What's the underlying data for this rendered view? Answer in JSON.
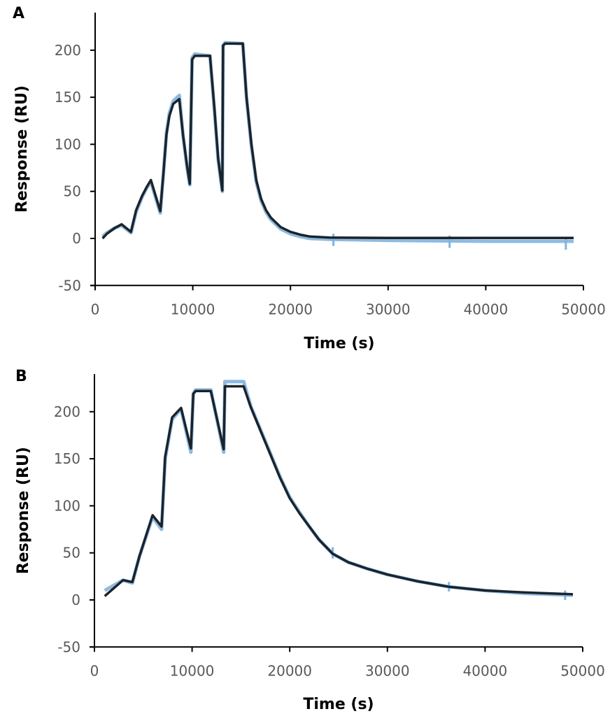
{
  "chart_data": [
    {
      "panel_label": "A",
      "type": "line",
      "xlabel": "Time (s)",
      "ylabel": "Response (RU)",
      "xlim": [
        0,
        50000
      ],
      "ylim": [
        -50,
        240
      ],
      "xticks": [
        0,
        10000,
        20000,
        30000,
        40000,
        50000
      ],
      "yticks": [
        -50,
        0,
        50,
        100,
        150,
        200
      ],
      "grid": false,
      "legend": "none",
      "colors": {
        "measured": "#7fb3de",
        "fit": "#1b232a"
      },
      "measured": {
        "points": [
          [
            760,
            2
          ],
          [
            1200,
            6
          ],
          [
            2000,
            11
          ],
          [
            2710,
            14
          ],
          [
            3670,
            6
          ],
          [
            4200,
            28
          ],
          [
            4800,
            44
          ],
          [
            5300,
            54
          ],
          [
            5710,
            60
          ],
          [
            6670,
            27
          ],
          [
            7000,
            70
          ],
          [
            7300,
            112
          ],
          [
            7600,
            133
          ],
          [
            8000,
            146
          ],
          [
            8620,
            152
          ],
          [
            9000,
            110
          ],
          [
            9400,
            76
          ],
          [
            9690,
            57
          ],
          [
            9930,
            192
          ],
          [
            10200,
            196
          ],
          [
            11760,
            194
          ],
          [
            12200,
            138
          ],
          [
            12600,
            83
          ],
          [
            13020,
            50
          ],
          [
            13100,
            205
          ],
          [
            13300,
            208
          ],
          [
            15120,
            207
          ],
          [
            15500,
            149
          ],
          [
            16000,
            98
          ],
          [
            16500,
            60
          ],
          [
            17000,
            40
          ],
          [
            17500,
            28
          ],
          [
            18000,
            20
          ],
          [
            19000,
            10
          ],
          [
            20000,
            5
          ],
          [
            21000,
            2
          ],
          [
            22000,
            0
          ],
          [
            24000,
            -1
          ],
          [
            30000,
            -2
          ],
          [
            40000,
            -3
          ],
          [
            49000,
            -3
          ]
        ],
        "spikes": [
          [
            24400,
            -8,
            5
          ],
          [
            36300,
            -10,
            3
          ],
          [
            48200,
            -12,
            0
          ]
        ]
      },
      "fit": {
        "points": [
          [
            760,
            0
          ],
          [
            1200,
            5
          ],
          [
            2000,
            11
          ],
          [
            2710,
            15
          ],
          [
            3670,
            7
          ],
          [
            4200,
            30
          ],
          [
            4800,
            45
          ],
          [
            5300,
            55
          ],
          [
            5710,
            62
          ],
          [
            6670,
            29
          ],
          [
            7000,
            70
          ],
          [
            7300,
            110
          ],
          [
            7600,
            130
          ],
          [
            8000,
            143
          ],
          [
            8620,
            148
          ],
          [
            9000,
            110
          ],
          [
            9400,
            78
          ],
          [
            9690,
            58
          ],
          [
            9930,
            190
          ],
          [
            10200,
            194
          ],
          [
            11760,
            194
          ],
          [
            12200,
            140
          ],
          [
            12600,
            85
          ],
          [
            13020,
            51
          ],
          [
            13100,
            205
          ],
          [
            13300,
            207
          ],
          [
            15120,
            207
          ],
          [
            15500,
            150
          ],
          [
            16000,
            100
          ],
          [
            16500,
            62
          ],
          [
            17000,
            42
          ],
          [
            17500,
            30
          ],
          [
            18000,
            22
          ],
          [
            19000,
            12
          ],
          [
            20000,
            7
          ],
          [
            21000,
            4
          ],
          [
            22000,
            2
          ],
          [
            24000,
            1
          ],
          [
            30000,
            0.5
          ],
          [
            49000,
            0.5
          ]
        ]
      }
    },
    {
      "panel_label": "B",
      "type": "line",
      "xlabel": "Time (s)",
      "ylabel": "Response (RU)",
      "xlim": [
        0,
        50000
      ],
      "ylim": [
        -50,
        240
      ],
      "xticks": [
        0,
        10000,
        20000,
        30000,
        40000,
        50000
      ],
      "yticks": [
        -50,
        0,
        50,
        100,
        150,
        200
      ],
      "grid": false,
      "legend": "none",
      "colors": {
        "measured": "#7fb3de",
        "fit": "#1b232a"
      },
      "measured": {
        "points": [
          [
            1050,
            10
          ],
          [
            2930,
            21
          ],
          [
            3880,
            18
          ],
          [
            4600,
            46
          ],
          [
            5950,
            88
          ],
          [
            6880,
            75
          ],
          [
            7240,
            150
          ],
          [
            7960,
            192
          ],
          [
            8870,
            203
          ],
          [
            9880,
            157
          ],
          [
            10120,
            219
          ],
          [
            10360,
            223
          ],
          [
            11920,
            223
          ],
          [
            13240,
            157
          ],
          [
            13360,
            232
          ],
          [
            15280,
            232
          ],
          [
            16000,
            206
          ],
          [
            17000,
            181
          ],
          [
            18000,
            156
          ],
          [
            19000,
            131
          ],
          [
            20000,
            109
          ],
          [
            21000,
            93
          ],
          [
            22000,
            78
          ],
          [
            23000,
            64
          ],
          [
            24400,
            49
          ],
          [
            26000,
            40
          ],
          [
            28000,
            33
          ],
          [
            30000,
            27
          ],
          [
            33000,
            20
          ],
          [
            36300,
            14
          ],
          [
            40000,
            10
          ],
          [
            44000,
            7
          ],
          [
            49000,
            5
          ]
        ],
        "spikes": [
          [
            24400,
            44,
            56
          ],
          [
            36300,
            9,
            19
          ],
          [
            48200,
            0,
            10
          ]
        ]
      },
      "fit": {
        "points": [
          [
            1050,
            4
          ],
          [
            2930,
            21
          ],
          [
            3880,
            19
          ],
          [
            4600,
            46
          ],
          [
            5950,
            90
          ],
          [
            6880,
            78
          ],
          [
            7240,
            152
          ],
          [
            7960,
            194
          ],
          [
            8870,
            204
          ],
          [
            9880,
            161
          ],
          [
            10120,
            219
          ],
          [
            10360,
            222
          ],
          [
            11920,
            222
          ],
          [
            13240,
            160
          ],
          [
            13360,
            227
          ],
          [
            15280,
            227
          ],
          [
            16000,
            205
          ],
          [
            17000,
            180
          ],
          [
            18000,
            155
          ],
          [
            19000,
            130
          ],
          [
            20000,
            108
          ],
          [
            21000,
            92
          ],
          [
            22000,
            78
          ],
          [
            23000,
            64
          ],
          [
            24400,
            49
          ],
          [
            26000,
            40
          ],
          [
            28000,
            33
          ],
          [
            30000,
            27
          ],
          [
            33000,
            20
          ],
          [
            36300,
            14
          ],
          [
            40000,
            10
          ],
          [
            44000,
            8
          ],
          [
            49000,
            6
          ]
        ]
      }
    }
  ]
}
